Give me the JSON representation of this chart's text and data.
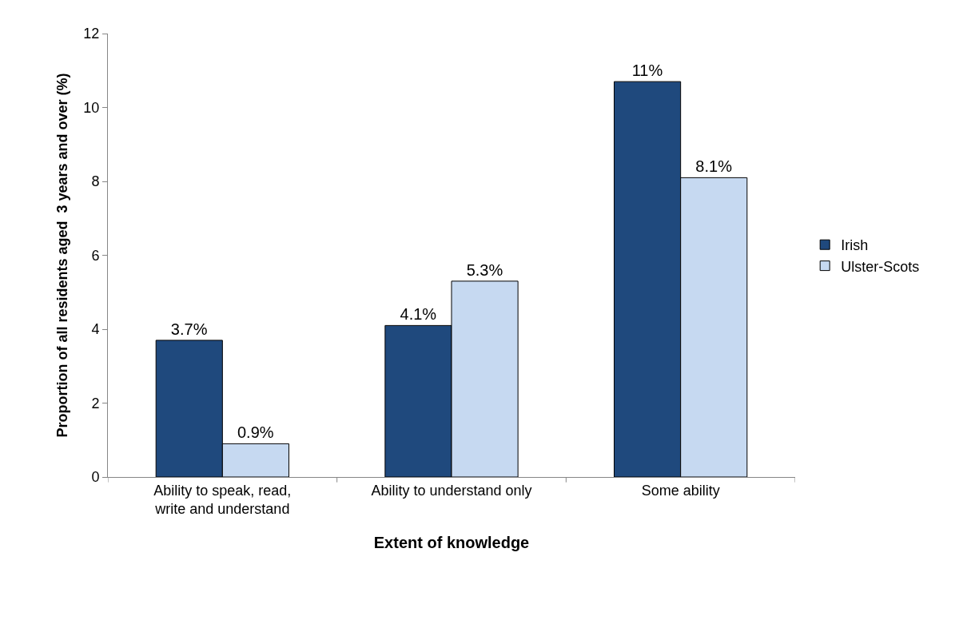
{
  "chart_data": {
    "type": "bar",
    "xlabel": "Extent of knowledge",
    "ylabel": "Proportion of all residents aged  3 years and over (%)",
    "categories": [
      "Ability to speak, read, write and understand",
      "Ability to understand only",
      "Some ability"
    ],
    "series": [
      {
        "name": "Irish",
        "color": "#1f497d",
        "values": [
          3.7,
          4.1,
          10.7
        ],
        "value_labels": [
          "3.7%",
          "4.1%",
          "11%"
        ]
      },
      {
        "name": "Ulster-Scots",
        "color": "#c6d9f1",
        "values": [
          0.9,
          5.3,
          8.1
        ],
        "value_labels": [
          "0.9%",
          "5.3%",
          "8.1%"
        ]
      }
    ],
    "ylim": [
      0,
      12
    ],
    "yticks": [
      0,
      2,
      4,
      6,
      8,
      10,
      12
    ],
    "legend": "right"
  }
}
